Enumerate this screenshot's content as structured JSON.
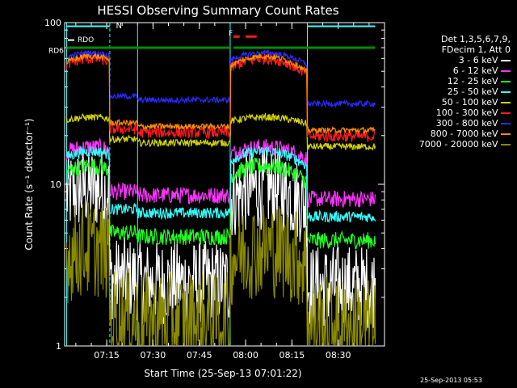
{
  "chart_data": {
    "type": "line",
    "title": "HESSI Observing Summary Count Rates",
    "xlabel": "Start Time (25-Sep-13 07:01:22)",
    "ylabel": "Count Rate (s⁻¹ detector⁻¹)",
    "y_scale": "log",
    "ylim": [
      1,
      100
    ],
    "y_ticks": [
      {
        "v": 1,
        "label": "1"
      },
      {
        "v": 10,
        "label": "10"
      },
      {
        "v": 100,
        "label": "100"
      }
    ],
    "xlim": [
      "07:01:22",
      "08:45:00"
    ],
    "x_ticks": [
      {
        "t": "07:15",
        "label": "07:15"
      },
      {
        "t": "07:30",
        "label": "07:30"
      },
      {
        "t": "07:45",
        "label": "07:45"
      },
      {
        "t": "08:00",
        "label": "08:00"
      },
      {
        "t": "08:15",
        "label": "08:15"
      },
      {
        "t": "08:30",
        "label": "08:30"
      }
    ],
    "legend": {
      "placement": "right",
      "header": [
        "Det 1,3,5,6,7,9,",
        "FDecim 1, Att 0"
      ],
      "entries": [
        {
          "label": "3 - 6 keV",
          "color": "#ffffff"
        },
        {
          "label": "6 - 12 keV",
          "color": "#ff33ff"
        },
        {
          "label": "12 - 25 keV",
          "color": "#22ff22"
        },
        {
          "label": "25 - 50 keV",
          "color": "#33ffff"
        },
        {
          "label": "50 - 100 keV",
          "color": "#d2d200"
        },
        {
          "label": "100 - 300 keV",
          "color": "#ff1a1a"
        },
        {
          "label": "300 - 800 keV",
          "color": "#2a2aff"
        },
        {
          "label": "800 - 7000 keV",
          "color": "#ff8c00"
        },
        {
          "label": "7000 - 20000 keV",
          "color": "#8a8a00"
        }
      ]
    },
    "annotations": {
      "N": "N",
      "RDO": "RDO",
      "RD6": "RD6",
      "F": "F"
    },
    "flag_colors": {
      "night_line": "#33ffff",
      "saa_line": "#008c00",
      "flare": "#ff1a1a",
      "rdo": "#ffffff"
    },
    "night_intervals": [
      [
        "07:02",
        "07:16"
      ],
      [
        "08:20",
        "08:42"
      ]
    ],
    "day_boundaries": [
      "07:16",
      "08:20"
    ],
    "saa_segments": [
      [
        "07:02",
        "07:55"
      ],
      [
        "07:56",
        "08:42"
      ]
    ],
    "flare_intervals": [
      [
        "07:56",
        "07:56:30"
      ],
      [
        "08:00",
        "08:02"
      ]
    ],
    "series_profiles": [
      {
        "label": "3 - 6 keV",
        "base": 2.6,
        "peak": 9.5,
        "noise": 0.6
      },
      {
        "label": "6 - 12 keV",
        "base": 9.0,
        "peak": 17.0,
        "noise": 0.12
      },
      {
        "label": "12 - 25 keV",
        "base": 5.0,
        "peak": 13.0,
        "noise": 0.12
      },
      {
        "label": "25 - 50 keV",
        "base": 7.0,
        "peak": 16.0,
        "noise": 0.08
      },
      {
        "label": "50 - 100 keV",
        "base": 19.0,
        "peak": 26.0,
        "noise": 0.05
      },
      {
        "label": "100 - 300 keV",
        "base": 22.0,
        "peak": 60.0,
        "noise": 0.08
      },
      {
        "label": "300 - 800 keV",
        "base": 35.0,
        "peak": 65.0,
        "noise": 0.04
      },
      {
        "label": "800 - 7000 keV",
        "base": 24.0,
        "peak": 62.0,
        "noise": 0.04
      },
      {
        "label": "7000 - 20000 keV",
        "base": 1.5,
        "peak": 4.0,
        "noise": 0.7
      }
    ],
    "timestamp": "25-Sep-2013 05:53"
  }
}
